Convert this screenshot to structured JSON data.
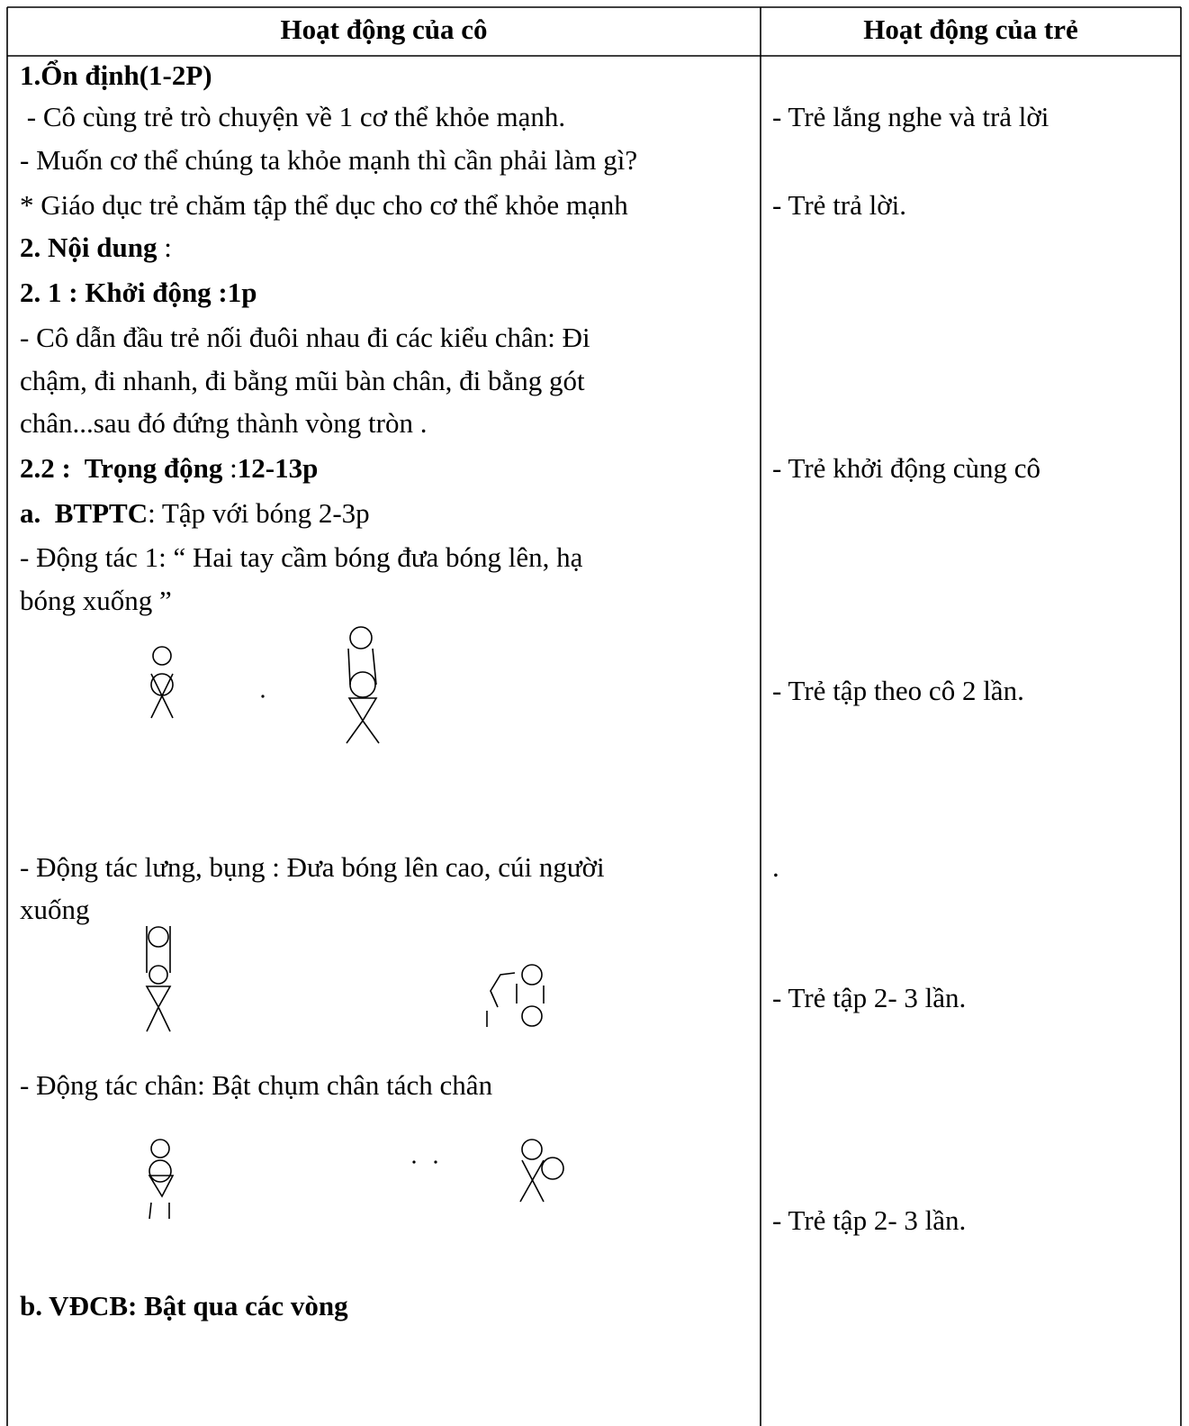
{
  "table": {
    "header": [
      "Hoạt động của cô",
      "Hoạt động của trẻ"
    ],
    "teacher": [
      [
        {
          "text": "1.Ổn định(1-2P)",
          "bold": true
        }
      ],
      [
        {
          "text": " - Cô cùng trẻ trò chuyện về 1 cơ thể khỏe mạnh.",
          "bold": false
        }
      ],
      [
        {
          "text": "- Muốn cơ thể chúng ta khỏe mạnh thì cần phải làm gì?",
          "bold": false
        }
      ],
      [
        {
          "text": "* Giáo dục trẻ chăm tập thể dục cho cơ thể khỏe mạnh",
          "bold": false
        }
      ],
      [
        {
          "text": "2. Nội dung",
          "bold": true
        },
        {
          "text": " :",
          "bold": false
        }
      ],
      [
        {
          "text": "2. 1 : Khởi động :1p",
          "bold": true
        }
      ],
      [
        {
          "text": "- Cô dẫn đầu trẻ nối đuôi nhau đi các kiểu chân: Đi",
          "bold": false
        }
      ],
      [
        {
          "text": "chậm, đi nhanh, đi bằng mũi bàn chân, đi bằng gót",
          "bold": false
        }
      ],
      [
        {
          "text": "chân...sau đó đứng thành vòng tròn .",
          "bold": false
        }
      ],
      [
        {
          "text": "2.2 :  Trọng động",
          "bold": true
        },
        {
          "text": " :",
          "bold": false
        },
        {
          "text": "12-13p",
          "bold": true
        }
      ],
      [
        {
          "text": "a.  BTPTC",
          "bold": true
        },
        {
          "text": ": Tập với bóng 2-3p",
          "bold": false
        }
      ],
      [
        {
          "text": "- Động tác 1: “ Hai tay cầm bóng đưa bóng lên, hạ",
          "bold": false
        }
      ],
      [
        {
          "text": "bóng xuống ”",
          "bold": false
        }
      ],
      [
        {
          "text": "- Động tác lưng, bụng : Đưa bóng lên cao, cúi người",
          "bold": false
        }
      ],
      [
        {
          "text": "xuống",
          "bold": false
        }
      ],
      [
        {
          "text": "- Động tác chân: Bật chụm chân tách chân",
          "bold": false
        }
      ],
      [
        {
          "text": "b. VĐCB: Bật qua các vòng",
          "bold": true
        }
      ]
    ],
    "children": [
      "- Trẻ lắng nghe và trả lời",
      "- Trẻ trả lời.",
      "- Trẻ khởi động cùng cô",
      "- Trẻ tập theo cô 2 lần.",
      ".",
      "- Trẻ tập 2- 3 lần.",
      "- Trẻ tập 2- 3 lần."
    ]
  }
}
